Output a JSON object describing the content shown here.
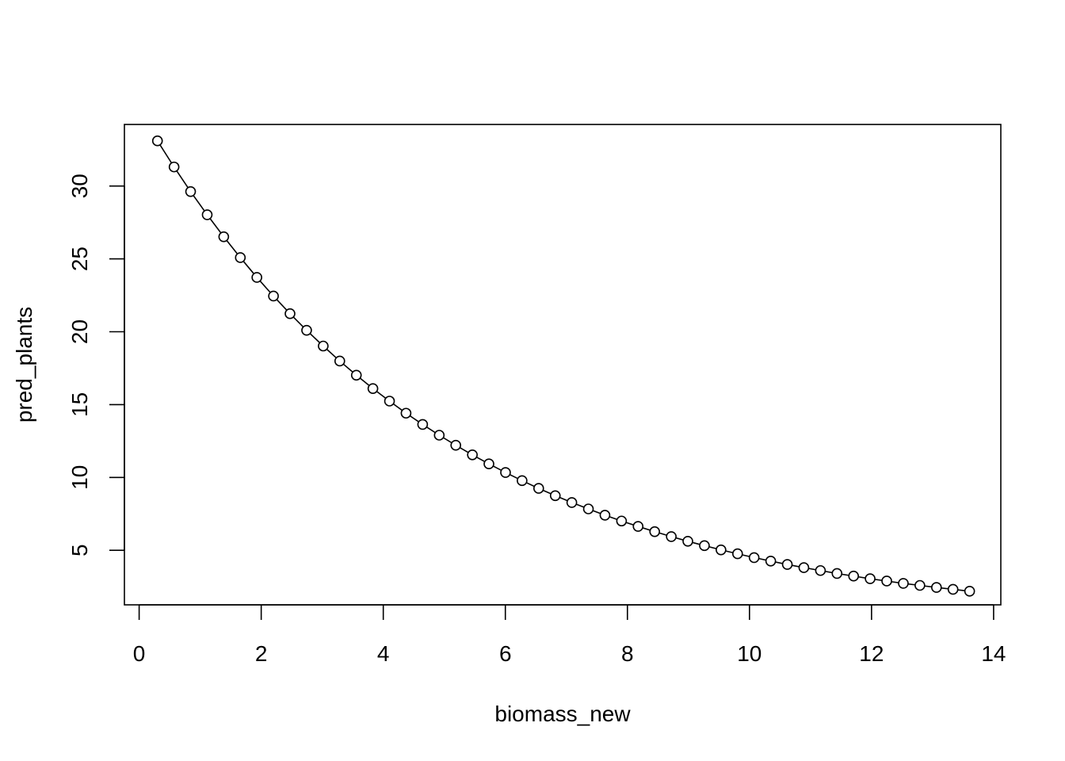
{
  "chart_data": {
    "type": "line",
    "title": "",
    "xlabel": "biomass_new",
    "ylabel": "pred_plants",
    "xlim": [
      0,
      14
    ],
    "ylim": [
      2.4,
      33.1
    ],
    "xticks": [
      "0",
      "2",
      "4",
      "6",
      "8",
      "10",
      "12",
      "14"
    ],
    "yticks": [
      "5",
      "10",
      "15",
      "20",
      "25",
      "30"
    ],
    "grid": false,
    "legend": "none",
    "marker": "open-circle",
    "line_color": "#000000",
    "series": [
      {
        "x": [
          0.3,
          0.572,
          0.843,
          1.115,
          1.386,
          1.658,
          1.929,
          2.201,
          2.472,
          2.744,
          3.016,
          3.287,
          3.559,
          3.83,
          4.102,
          4.373,
          4.645,
          4.917,
          5.188,
          5.46,
          5.731,
          6.003,
          6.274,
          6.546,
          6.818,
          7.089,
          7.361,
          7.632,
          7.904,
          8.175,
          8.447,
          8.719,
          8.99,
          9.262,
          9.533,
          9.805,
          10.076,
          10.348,
          10.62,
          10.891,
          11.163,
          11.434,
          11.706,
          11.977,
          12.249,
          12.521,
          12.792,
          13.064,
          13.335,
          13.607
        ],
        "y": [
          33.1,
          31.31,
          29.62,
          28.03,
          26.52,
          25.09,
          23.73,
          22.45,
          21.24,
          20.1,
          19.02,
          17.99,
          17.02,
          16.1,
          15.24,
          14.41,
          13.64,
          12.9,
          12.21,
          11.55,
          10.93,
          10.34,
          9.78,
          9.25,
          8.75,
          8.28,
          7.84,
          7.41,
          7.01,
          6.64,
          6.28,
          5.94,
          5.62,
          5.32,
          5.03,
          4.76,
          4.5,
          4.26,
          4.03,
          3.81,
          3.61,
          3.41,
          3.23,
          3.05,
          2.89,
          2.73,
          2.59,
          2.45,
          2.32,
          2.19
        ]
      }
    ]
  }
}
